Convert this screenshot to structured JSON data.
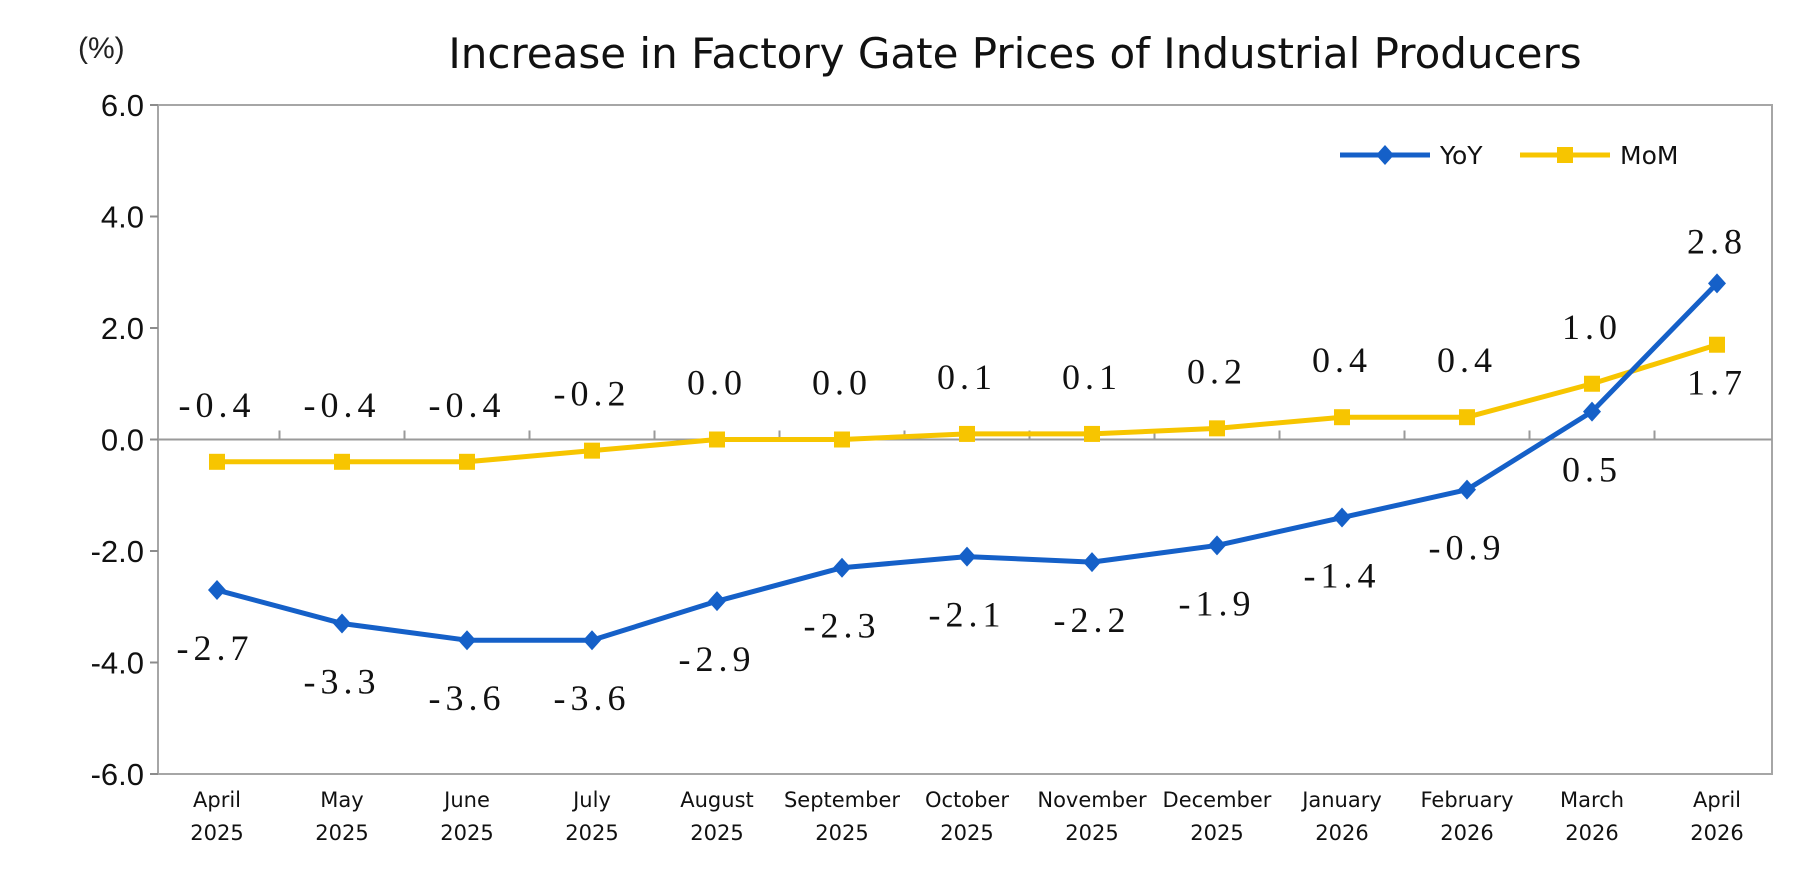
{
  "chart_data": {
    "type": "line",
    "title": "Increase in Factory Gate Prices of Industrial Producers",
    "unit_label": "(%)",
    "categories": [
      [
        "April",
        "2025"
      ],
      [
        "May",
        "2025"
      ],
      [
        "June",
        "2025"
      ],
      [
        "July",
        "2025"
      ],
      [
        "August",
        "2025"
      ],
      [
        "September",
        "2025"
      ],
      [
        "October",
        "2025"
      ],
      [
        "November",
        "2025"
      ],
      [
        "December",
        "2025"
      ],
      [
        "January",
        "2026"
      ],
      [
        "February",
        "2026"
      ],
      [
        "March",
        "2026"
      ],
      [
        "April",
        "2026"
      ]
    ],
    "ylim": [
      -6.0,
      6.0
    ],
    "yticks": [
      6.0,
      4.0,
      2.0,
      0.0,
      -2.0,
      -4.0,
      -6.0
    ],
    "ytick_labels": [
      "6.0",
      "4.0",
      "2.0",
      "0.0",
      "-2.0",
      "-4.0",
      "-6.0"
    ],
    "grid": false,
    "legend_position": "top-right",
    "series": [
      {
        "name": "YoY",
        "color": "#1560c8",
        "marker": "diamond",
        "values": [
          -2.7,
          -3.3,
          -3.6,
          -3.6,
          -2.9,
          -2.3,
          -2.1,
          -2.2,
          -1.9,
          -1.4,
          -0.9,
          0.5,
          2.8
        ],
        "labels": [
          "-2.7",
          "-3.3",
          "-3.6",
          "-3.6",
          "-2.9",
          "-2.3",
          "-2.1",
          "-2.2",
          "-1.9",
          "-1.4",
          "-0.9",
          "0.5",
          "2.8"
        ]
      },
      {
        "name": "MoM",
        "color": "#f7c500",
        "marker": "square",
        "values": [
          -0.4,
          -0.4,
          -0.4,
          -0.2,
          0.0,
          0.0,
          0.1,
          0.1,
          0.2,
          0.4,
          0.4,
          1.0,
          1.7
        ],
        "labels": [
          "-0.4",
          "-0.4",
          "-0.4",
          "-0.2",
          "0.0",
          "0.0",
          "0.1",
          "0.1",
          "0.2",
          "0.4",
          "0.4",
          "1.0",
          "1.7"
        ]
      }
    ]
  }
}
